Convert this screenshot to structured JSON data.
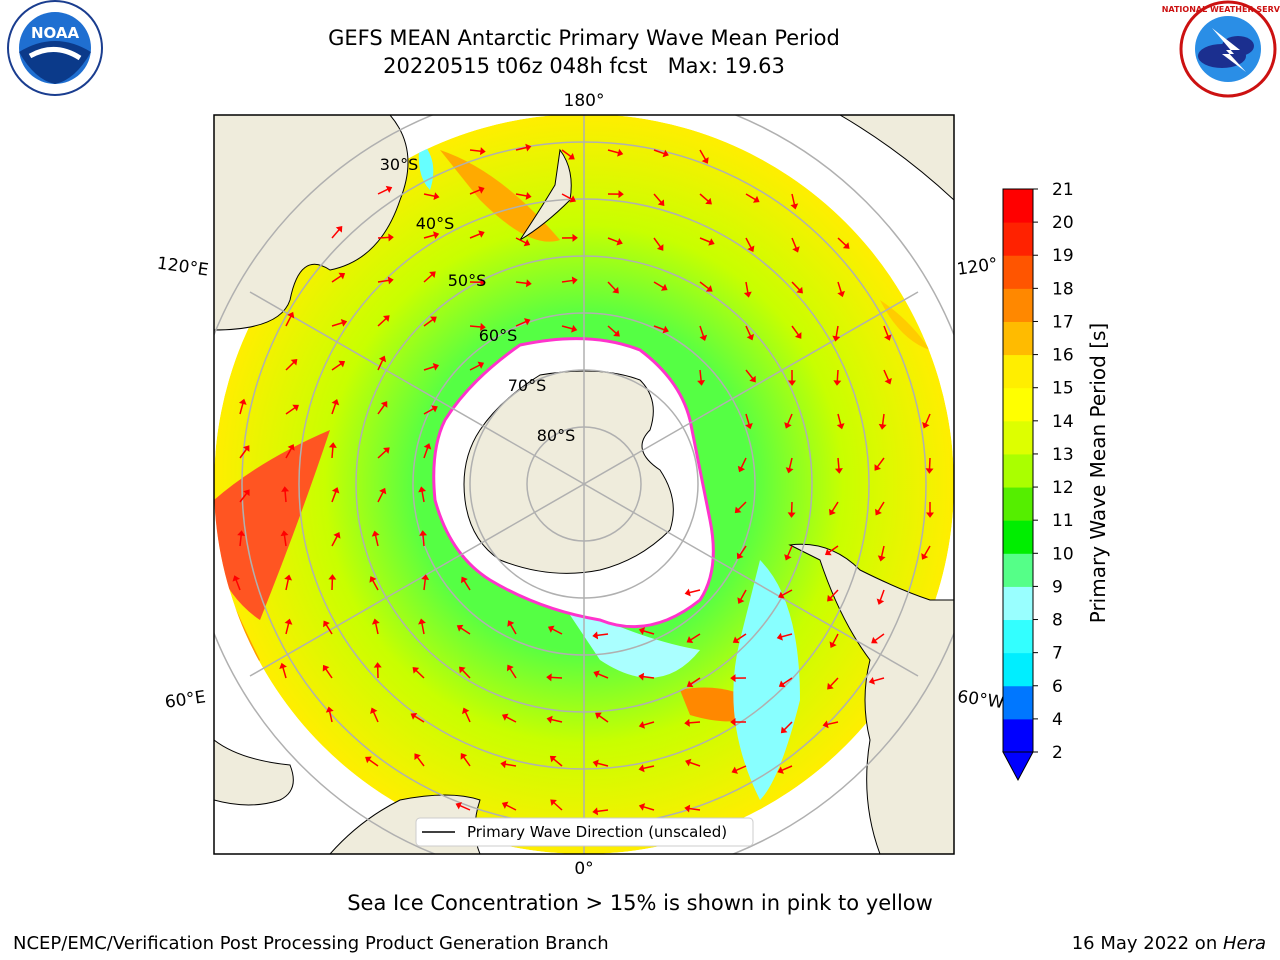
{
  "title": {
    "line1": "GEFS MEAN Antarctic Primary Wave Mean Period",
    "line2": "20220515 t06z 048h fcst   Max: 19.63"
  },
  "logos": {
    "left": {
      "text": "NOAA",
      "icon": "noaa-logo"
    },
    "right": {
      "text": "NATIONAL WEATHER SERVICE",
      "icon": "nws-logo"
    }
  },
  "map": {
    "meridian_labels": {
      "top": "180°",
      "bottom": "0°",
      "upper_left": "120°E",
      "lower_left": "60°E",
      "upper_right": "120°",
      "lower_right": "60°W"
    },
    "lat_labels": [
      "30°S",
      "40°S",
      "50°S",
      "60°S",
      "70°S",
      "80°S"
    ],
    "legend_label": "Primary Wave Direction (unscaled)",
    "colors": {
      "land": "#efecdc",
      "ice": "#ffffff",
      "ice_edge": "#ff33cc",
      "arrow": "#ff0000"
    }
  },
  "colorbar": {
    "title": "Primary Wave Mean Period [s]",
    "ticks": [
      "2",
      "4",
      "6",
      "7",
      "8",
      "9",
      "10",
      "11",
      "12",
      "13",
      "14",
      "15",
      "16",
      "17",
      "18",
      "19",
      "20",
      "21"
    ],
    "colors": [
      "#0000ff",
      "#0077ff",
      "#00eeff",
      "#33ffff",
      "#99ffff",
      "#55ff88",
      "#00ee00",
      "#55ee00",
      "#aaff00",
      "#ddff00",
      "#ffff00",
      "#ffee00",
      "#ffbb00",
      "#ff8800",
      "#ff5500",
      "#ff2200",
      "#ff0000"
    ]
  },
  "caption": "Sea Ice Concentration > 15% is shown in pink to yellow",
  "footer": {
    "left": "NCEP/EMC/Verification Post Processing Product Generation Branch",
    "date": "16 May 2022 on ",
    "host": "Hera"
  }
}
